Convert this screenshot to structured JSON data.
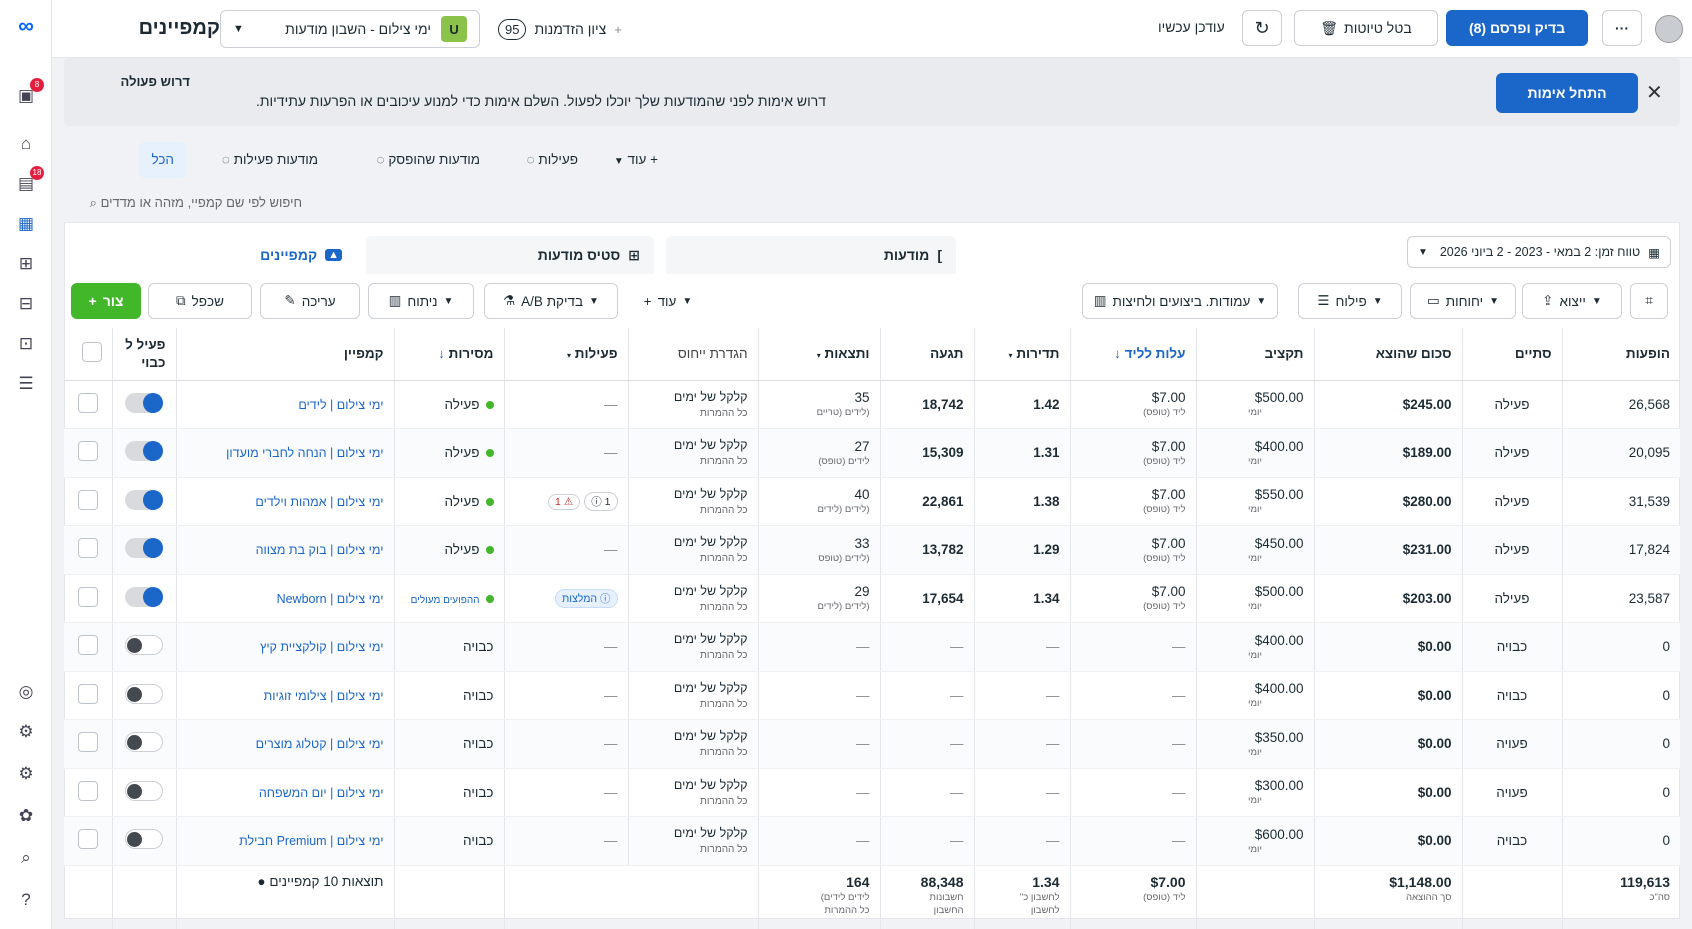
{
  "header": {
    "title": "קמפיינים",
    "account_badge": "U",
    "account_name": "ימי צילום - השבון מודעות",
    "opportunity_label": "ציון הזדמנות",
    "opportunity_score": "95",
    "updated_label": "עודכן עכשיו",
    "discard_label": "בטל טיוטות",
    "publish_label": "בדיק ופרסם (8)",
    "more_label": "···"
  },
  "banner": {
    "title": "דרוש פעולה",
    "message": "דרוש אימות לפני שהמודעות שלך יוכלו לפעול. השלם אימות כדי למנוע עיכובים או הפרעות עתידיות.",
    "verify_label": "התחל אימות",
    "close": "✕"
  },
  "rail": {
    "badge_top": "8",
    "badge_mid": "18"
  },
  "filter_tabs": {
    "all": "הכל",
    "active_ads": "מודעות פעילות",
    "paused_ads": "מודעות שהופסק",
    "actions": "פעילות",
    "more": "עוד"
  },
  "search": {
    "placeholder": "חיפוש לפי שם קמפיי, מזהה או מדדים"
  },
  "views": {
    "campaigns": "קמפיינים",
    "adsets": "סטיס מודעות",
    "ads": "מודעות"
  },
  "date_range": "טווח זמן: 2 במאי - 2023 - 2 ביוני 2026",
  "toolbar": {
    "create": "צור",
    "duplicate": "שכפל",
    "edit": "עריכה",
    "analyze": "ניתוח",
    "ab_test": "בדיקת A/B",
    "more": "עוד",
    "columns": "עמודות. ביצועים ולחיצות",
    "filters": "פילוח",
    "reports": "יחוחות",
    "export": "ייצוא"
  },
  "columns": {
    "impressions": "הופעות",
    "ends": "סתיים",
    "spent": "סכום שהוצא",
    "budget": "תקציב",
    "cost_per_lead": "עלות לליד",
    "frequency": "תדירות",
    "reach": "תגעה",
    "results": "ותצאות",
    "attribution": "הגדרת ייחוס",
    "actions": "פעילות",
    "delivery": "מסירות",
    "campaign": "קמפיין",
    "onoff": "פעיל ל כבוי"
  },
  "rows": [
    {
      "impressions": "26,568",
      "ends": "פעילה",
      "spent": "$245.00",
      "budget": "$500.00",
      "budget_sub": "יומי",
      "cpl": "$7.00",
      "cpl_sub": "ליד (טופס)",
      "frequency": "1.42",
      "reach": "18,742",
      "results": "35",
      "results_sub": "(לידים (טריים",
      "attr": "קלקל של ימים",
      "attr_sub": "כל ההמרות",
      "actions": "—",
      "delivery": "פעילה",
      "name": "ימי צילום | לידים",
      "on": true
    },
    {
      "impressions": "20,095",
      "ends": "פעילה",
      "spent": "$189.00",
      "budget": "$400.00",
      "budget_sub": "יומי",
      "cpl": "$7.00",
      "cpl_sub": "ליד (טופס)",
      "frequency": "1.31",
      "reach": "15,309",
      "results": "27",
      "results_sub": "לידים (טופס)",
      "attr": "קלקל של ימים",
      "attr_sub": "כל ההמרות",
      "actions": "—",
      "delivery": "פעילה",
      "name": "ימי צילום | הנחה לחברי מועדון",
      "on": true
    },
    {
      "impressions": "31,539",
      "ends": "פעילה",
      "spent": "$280.00",
      "budget": "$550.00",
      "budget_sub": "יומי",
      "cpl": "$7.00",
      "cpl_sub": "ליד (טופס)",
      "frequency": "1.38",
      "reach": "22,861",
      "results": "40",
      "results_sub": "(לידים (לידים",
      "attr": "קלקל של ימים",
      "attr_sub": "כל ההמרות",
      "actions": "chips",
      "chip_a": "⚠ 1",
      "chip_b": "ⓘ 1",
      "delivery": "פעילה",
      "name": "ימי צילום | אמהות וילדים",
      "on": true
    },
    {
      "impressions": "17,824",
      "ends": "פעילה",
      "spent": "$231.00",
      "budget": "$450.00",
      "budget_sub": "יומי",
      "cpl": "$7.00",
      "cpl_sub": "ליד (טופס)",
      "frequency": "1.29",
      "reach": "13,782",
      "results": "33",
      "results_sub": "(לידים (טופס",
      "attr": "קלקל של ימים",
      "attr_sub": "כל ההמרות",
      "actions": "—",
      "delivery": "פעילה",
      "name": "ימי צילום | בוק בת מצווה",
      "on": true
    },
    {
      "impressions": "23,587",
      "ends": "פעילה",
      "spent": "$203.00",
      "budget": "$500.00",
      "budget_sub": "יומי",
      "cpl": "$7.00",
      "cpl_sub": "ליד (טופס)",
      "frequency": "1.34",
      "reach": "17,654",
      "results": "29",
      "results_sub": "(לידים (לידים",
      "attr": "קלקל של ימים",
      "attr_sub": "כל ההמרות",
      "actions": "badge",
      "chip_c": "ⓘ המלצות",
      "delivery": "ההפועים מעולים",
      "name": "ימי צילום | Newborn",
      "on": true
    },
    {
      "impressions": "0",
      "ends": "כבויה",
      "spent": "$0.00",
      "budget": "$400.00",
      "budget_sub": "יומי",
      "cpl": "—",
      "cpl_sub": "",
      "frequency": "—",
      "reach": "—",
      "results": "—",
      "results_sub": "",
      "attr": "קלקל של ימים",
      "attr_sub": "כל ההמרות",
      "actions": "—",
      "delivery": "כבויה",
      "name": "ימי צילום | קולקציית קיץ",
      "on": false
    },
    {
      "impressions": "0",
      "ends": "כבויה",
      "spent": "$0.00",
      "budget": "$400.00",
      "budget_sub": "יומי",
      "cpl": "—",
      "cpl_sub": "",
      "frequency": "—",
      "reach": "—",
      "results": "—",
      "results_sub": "",
      "attr": "קלקל של ימים",
      "attr_sub": "כל ההמרות",
      "actions": "—",
      "delivery": "כבויה",
      "name": "ימי צילום | צילומי זוגיות",
      "on": false
    },
    {
      "impressions": "0",
      "ends": "פעויה",
      "spent": "$0.00",
      "budget": "$350.00",
      "budget_sub": "יומי",
      "cpl": "—",
      "cpl_sub": "",
      "frequency": "—",
      "reach": "—",
      "results": "—",
      "results_sub": "",
      "attr": "קלקל של ימים",
      "attr_sub": "כל ההמרות",
      "actions": "—",
      "delivery": "כבויה",
      "name": "ימי צילום | קטלוג מוצרים",
      "on": false
    },
    {
      "impressions": "0",
      "ends": "פעויה",
      "spent": "$0.00",
      "budget": "$300.00",
      "budget_sub": "יומי",
      "cpl": "—",
      "cpl_sub": "",
      "frequency": "—",
      "reach": "—",
      "results": "—",
      "results_sub": "",
      "attr": "קלקל של ימים",
      "attr_sub": "כל ההמרות",
      "actions": "—",
      "delivery": "כבויה",
      "name": "ימי צילום | יום המשפחה",
      "on": false
    },
    {
      "impressions": "0",
      "ends": "כבויה",
      "spent": "$0.00",
      "budget": "$600.00",
      "budget_sub": "יומי",
      "cpl": "—",
      "cpl_sub": "",
      "frequency": "—",
      "reach": "—",
      "results": "—",
      "results_sub": "",
      "attr": "קלקל של ימים",
      "attr_sub": "כל ההמרות",
      "actions": "—",
      "delivery": "כבויה",
      "name": "ימי צילום | Premium חבילת",
      "on": false
    }
  ],
  "totals": {
    "impressions": "119,613",
    "impressions_sub": "סה\"כ",
    "spent": "$1,148.00",
    "spent_sub": "סך ההוצאה",
    "cpl": "$7.00",
    "cpl_sub": "ליד (טופס)",
    "frequency": "1.34",
    "frequency_sub": "לחשבון כ\"",
    "frequency_sub2": "לחשבון",
    "reach": "88,348",
    "reach_sub": "חשבונות",
    "reach_sub2": "החשבון",
    "results": "164",
    "results_sub": "לידים לידים)",
    "results_sub2": "כל ההמרות",
    "label": "תוצאות 10 קמפיינים"
  },
  "colors": {
    "accent": "#1b66c9",
    "create": "#42b72a",
    "badge": "#e41e3f"
  }
}
